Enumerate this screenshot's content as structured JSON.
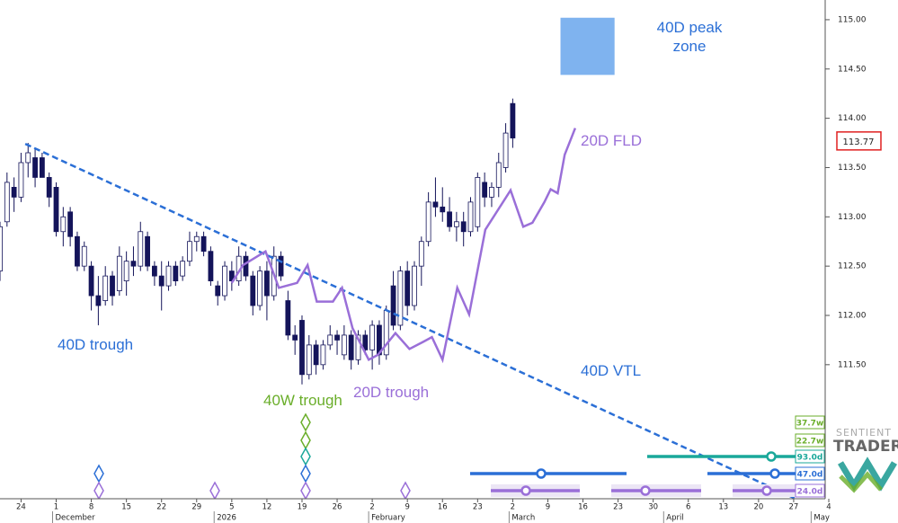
{
  "chart_data": {
    "type": "candlestick",
    "up_color": "#ffffff",
    "down_color": "#14145a",
    "xlim": [
      -3,
      115
    ],
    "ylim": [
      110.14,
      115.2
    ],
    "x": [
      -3,
      -2,
      -1,
      0,
      1,
      2,
      3,
      4,
      5,
      6,
      7,
      8,
      9,
      10,
      11,
      12,
      13,
      14,
      15,
      16,
      17,
      18,
      19,
      20,
      21,
      22,
      23,
      24,
      25,
      26,
      27,
      28,
      29,
      30,
      31,
      32,
      33,
      34,
      35,
      36,
      37,
      38,
      39,
      40,
      41,
      42,
      43,
      44,
      45,
      46,
      47,
      48,
      49,
      50,
      51,
      52,
      53,
      54,
      55,
      56,
      57,
      58,
      59,
      60,
      61,
      62,
      63,
      64,
      65,
      66,
      67,
      68,
      69,
      70
    ],
    "open": [
      112.45,
      112.95,
      113.3,
      113.2,
      113.55,
      113.6,
      113.6,
      113.4,
      113.3,
      112.85,
      113.05,
      112.8,
      112.5,
      112.5,
      112.2,
      112.15,
      112.4,
      112.25,
      112.35,
      112.55,
      112.5,
      112.8,
      112.5,
      112.4,
      112.3,
      112.5,
      112.4,
      112.55,
      112.75,
      112.8,
      112.65,
      112.3,
      112.2,
      112.45,
      112.35,
      112.6,
      112.4,
      112.1,
      112.45,
      112.2,
      112.6,
      112.15,
      111.8,
      111.95,
      111.4,
      111.7,
      111.5,
      111.7,
      111.8,
      111.6,
      111.8,
      111.55,
      111.8,
      111.65,
      111.9,
      111.6,
      112.3,
      111.9,
      112.45,
      112.1,
      112.5,
      112.75,
      113.15,
      113.1,
      113.05,
      112.9,
      112.95,
      112.85,
      112.9,
      113.35,
      113.2,
      113.3,
      113.5,
      114.15
    ],
    "high": [
      112.95,
      113.45,
      113.4,
      113.65,
      113.75,
      113.7,
      113.65,
      113.45,
      113.35,
      113.1,
      113.1,
      112.85,
      112.75,
      112.55,
      112.4,
      112.5,
      112.45,
      112.7,
      112.65,
      112.7,
      112.95,
      112.85,
      112.55,
      112.55,
      112.55,
      112.55,
      112.6,
      112.85,
      112.85,
      112.85,
      112.7,
      112.35,
      112.55,
      112.55,
      112.7,
      112.65,
      112.45,
      112.5,
      112.55,
      112.7,
      112.65,
      112.25,
      111.9,
      112.0,
      111.8,
      111.75,
      111.75,
      111.9,
      111.85,
      111.9,
      111.85,
      111.85,
      111.85,
      111.95,
      111.95,
      112.1,
      112.45,
      112.5,
      112.55,
      112.55,
      112.8,
      113.25,
      113.4,
      113.3,
      113.2,
      113.05,
      113.05,
      113.2,
      113.45,
      113.45,
      113.35,
      113.65,
      113.95,
      114.2
    ],
    "low": [
      112.35,
      112.9,
      113.05,
      113.15,
      113.4,
      113.3,
      113.4,
      113.1,
      112.8,
      112.7,
      112.7,
      112.45,
      112.45,
      112.05,
      111.9,
      112.1,
      112.1,
      112.2,
      112.2,
      112.4,
      112.45,
      112.45,
      112.3,
      112.05,
      112.25,
      112.3,
      112.35,
      112.5,
      112.65,
      112.6,
      112.3,
      112.1,
      112.15,
      112.25,
      112.3,
      112.35,
      112.0,
      112.05,
      111.95,
      112.15,
      112.35,
      111.75,
      111.6,
      111.3,
      111.35,
      111.4,
      111.45,
      111.65,
      111.6,
      111.55,
      111.45,
      111.5,
      111.6,
      111.45,
      111.5,
      111.55,
      111.85,
      111.85,
      112.0,
      112.05,
      112.3,
      112.7,
      113.0,
      112.95,
      112.85,
      112.75,
      112.7,
      112.8,
      112.85,
      113.1,
      113.1,
      113.2,
      113.45,
      113.7
    ],
    "close": [
      112.9,
      113.35,
      113.2,
      113.55,
      113.65,
      113.4,
      113.4,
      113.2,
      112.85,
      113.0,
      112.8,
      112.5,
      112.7,
      112.2,
      112.1,
      112.4,
      112.2,
      112.6,
      112.55,
      112.5,
      112.85,
      112.5,
      112.4,
      112.3,
      112.5,
      112.35,
      112.55,
      112.75,
      112.8,
      112.65,
      112.35,
      112.2,
      112.5,
      112.35,
      112.6,
      112.4,
      112.1,
      112.45,
      112.2,
      112.6,
      112.4,
      111.8,
      111.75,
      111.4,
      111.7,
      111.5,
      111.7,
      111.8,
      111.75,
      111.8,
      111.55,
      111.8,
      111.65,
      111.9,
      111.6,
      112.05,
      111.9,
      112.45,
      112.1,
      112.5,
      112.75,
      113.15,
      113.1,
      113.05,
      112.9,
      112.95,
      112.85,
      113.15,
      113.4,
      113.2,
      113.3,
      113.55,
      113.85,
      113.8
    ],
    "xticks": [
      {
        "value": 0,
        "label": "24"
      },
      {
        "value": 5,
        "label": "1"
      },
      {
        "value": 10,
        "label": "8"
      },
      {
        "value": 15,
        "label": "15"
      },
      {
        "value": 20,
        "label": "22"
      },
      {
        "value": 25,
        "label": "29"
      },
      {
        "value": 30,
        "label": "5"
      },
      {
        "value": 35,
        "label": "12"
      },
      {
        "value": 40,
        "label": "19"
      },
      {
        "value": 45,
        "label": "26"
      },
      {
        "value": 50,
        "label": "2"
      },
      {
        "value": 55,
        "label": "9"
      },
      {
        "value": 60,
        "label": "16"
      },
      {
        "value": 65,
        "label": "23"
      },
      {
        "value": 70,
        "label": "2"
      },
      {
        "value": 75,
        "label": "9"
      },
      {
        "value": 80,
        "label": "16"
      },
      {
        "value": 85,
        "label": "23"
      },
      {
        "value": 90,
        "label": "30"
      },
      {
        "value": 95,
        "label": "6"
      },
      {
        "value": 100,
        "label": "13"
      },
      {
        "value": 105,
        "label": "20"
      },
      {
        "value": 110,
        "label": "27"
      },
      {
        "value": 115,
        "label": "4"
      }
    ],
    "month_labels": [
      {
        "value": 5,
        "label": "December"
      },
      {
        "value": 28,
        "label": "2026"
      },
      {
        "value": 50,
        "label": "February"
      },
      {
        "value": 70,
        "label": "March"
      },
      {
        "value": 92,
        "label": "April"
      },
      {
        "value": 113,
        "label": "May"
      }
    ],
    "yticks": [
      {
        "value": 111.5,
        "label": "111.50"
      },
      {
        "value": 112,
        "label": "112.00"
      },
      {
        "value": 112.5,
        "label": "112.50"
      },
      {
        "value": 113,
        "label": "113.00"
      },
      {
        "value": 113.5,
        "label": "113.50"
      },
      {
        "value": 114,
        "label": "114.00"
      },
      {
        "value": 114.5,
        "label": "114.50"
      },
      {
        "value": 115,
        "label": "115.00"
      }
    ],
    "last_price": 113.77,
    "fld": {
      "name": "20D FLD",
      "color": "#9a6fd8",
      "x": [
        30.0,
        31.6,
        34.8,
        36.7,
        39.3,
        40.8,
        42.1,
        44.4,
        45.7,
        47.2,
        49.5,
        50.8,
        53.3,
        55.3,
        57.2,
        58.5,
        60.0,
        62.1,
        63.8,
        66.1,
        69.7,
        71.5,
        72.8,
        74.5,
        75.4,
        76.4,
        77.4,
        78.9
      ],
      "values": [
        112.33,
        112.51,
        112.65,
        112.28,
        112.33,
        112.51,
        112.14,
        112.14,
        112.28,
        111.87,
        111.55,
        111.6,
        111.82,
        111.66,
        111.73,
        111.78,
        111.55,
        112.28,
        112.01,
        112.87,
        113.27,
        112.9,
        112.94,
        113.15,
        113.28,
        113.24,
        113.63,
        113.9
      ]
    },
    "vtl": {
      "name": "40D VTL",
      "color": "#2b6fd6",
      "x": [
        0.6,
        110.3
      ],
      "values": [
        113.74,
        110.14
      ]
    },
    "peak_zone": {
      "name": "40D peak zone",
      "color": "#7fb3ef",
      "x": [
        76.8,
        84.5
      ],
      "values": [
        114.44,
        115.02
      ]
    },
    "annotations": [
      "40D trough",
      "40W trough",
      "20D trough"
    ],
    "cycles": [
      {
        "label": "37.7w",
        "color": "#6aae2a"
      },
      {
        "label": "22.7w",
        "color": "#6aae2a"
      },
      {
        "label": "93.0d",
        "color": "#1aa89a"
      },
      {
        "label": "47.0d",
        "color": "#2b6fd6"
      },
      {
        "label": "24.0d",
        "color": "#9a6fd8"
      }
    ],
    "logo": [
      "SENTIENT",
      "TRADER"
    ]
  }
}
